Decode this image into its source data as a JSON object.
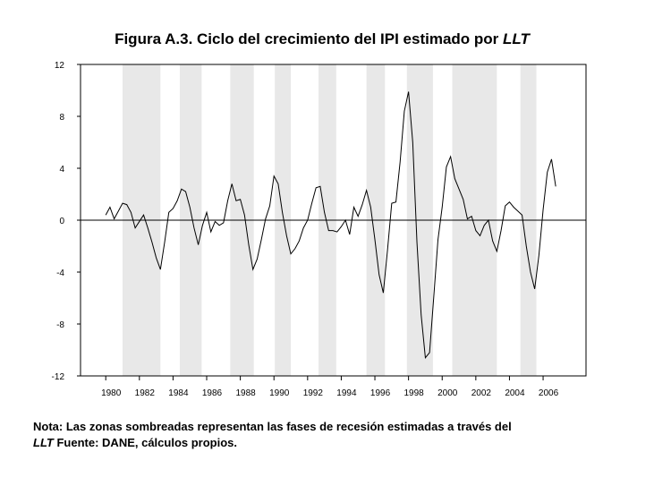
{
  "chart_data": {
    "type": "line",
    "title": "Figura A.3. Ciclo del crecimiento del IPI estimado por",
    "title_emphasis": "LLT",
    "note": [
      "Nota: Las zonas sombreadas representan las fases de recesión estimadas a través del",
      "LLT",
      "Fuente: DANE, cálculos propios."
    ],
    "xlim": [
      1978.5,
      2008.55
    ],
    "xticks": [
      1980,
      1982,
      1984,
      1986,
      1988,
      1990,
      1992,
      1994,
      1996,
      1998,
      2000,
      2002,
      2004,
      2006
    ],
    "ylim": [
      -12,
      12
    ],
    "yticks": [
      -12,
      -8,
      -4,
      0,
      4,
      8,
      12
    ],
    "recessions": [
      [
        1981.0,
        1983.25
      ],
      [
        1984.4,
        1985.7
      ],
      [
        1987.4,
        1988.8
      ],
      [
        1990.05,
        1991.0
      ],
      [
        1992.65,
        1993.7
      ],
      [
        1995.5,
        1996.6
      ],
      [
        1997.9,
        1999.45
      ],
      [
        2000.6,
        2003.25
      ],
      [
        2004.65,
        2005.6
      ]
    ],
    "recession_color": "#e8e8e8",
    "x": [
      1980,
      1980.25,
      1980.5,
      1980.75,
      1981,
      1981.25,
      1981.5,
      1981.75,
      1982,
      1982.25,
      1982.5,
      1982.75,
      1983,
      1983.25,
      1983.5,
      1983.75,
      1984,
      1984.25,
      1984.5,
      1984.75,
      1985,
      1985.25,
      1985.5,
      1985.75,
      1986,
      1986.25,
      1986.5,
      1986.75,
      1987,
      1987.25,
      1987.5,
      1987.75,
      1988,
      1988.25,
      1988.5,
      1988.75,
      1989,
      1989.25,
      1989.5,
      1989.75,
      1990,
      1990.25,
      1990.5,
      1990.75,
      1991,
      1991.25,
      1991.5,
      1991.75,
      1992,
      1992.25,
      1992.5,
      1992.75,
      1993,
      1993.25,
      1993.5,
      1993.75,
      1994,
      1994.25,
      1994.5,
      1994.75,
      1995,
      1995.25,
      1995.5,
      1995.75,
      1996,
      1996.25,
      1996.5,
      1996.75,
      1997,
      1997.25,
      1997.5,
      1997.75,
      1998,
      1998.25,
      1998.5,
      1998.75,
      1999,
      1999.25,
      1999.5,
      1999.75,
      2000,
      2000.25,
      2000.5,
      2000.75,
      2001,
      2001.25,
      2001.5,
      2001.75,
      2002,
      2002.25,
      2002.5,
      2002.75,
      2003,
      2003.25,
      2003.5,
      2003.75,
      2004,
      2004.25,
      2004.5,
      2004.75,
      2005,
      2005.25,
      2005.5,
      2005.75,
      2006,
      2006.25,
      2006.5,
      2006.75
    ],
    "series": [
      {
        "color": "#000000",
        "values": [
          0.4,
          1.0,
          0.1,
          0.7,
          1.3,
          1.2,
          0.6,
          -0.6,
          -0.1,
          0.4,
          -0.6,
          -1.7,
          -2.9,
          -3.8,
          -1.7,
          0.6,
          0.9,
          1.5,
          2.4,
          2.2,
          1.0,
          -0.6,
          -1.9,
          -0.4,
          0.6,
          -0.9,
          -0.1,
          -0.4,
          -0.2,
          1.5,
          2.8,
          1.5,
          1.6,
          0.4,
          -1.9,
          -3.8,
          -3.0,
          -1.5,
          0.1,
          1.1,
          3.4,
          2.8,
          0.6,
          -1.2,
          -2.6,
          -2.2,
          -1.6,
          -0.6,
          0.0,
          1.3,
          2.5,
          2.6,
          0.6,
          -0.8,
          -0.8,
          -0.9,
          -0.5,
          0.0,
          -1.1,
          1.0,
          0.3,
          1.2,
          2.3,
          1.0,
          -1.5,
          -4.2,
          -5.6,
          -2.3,
          1.3,
          1.4,
          4.5,
          8.4,
          9.9,
          6.0,
          -1.7,
          -7.3,
          -10.6,
          -10.2,
          -5.9,
          -1.5,
          1.0,
          4.1,
          4.9,
          3.2,
          2.4,
          1.6,
          0.1,
          0.3,
          -0.8,
          -1.2,
          -0.4,
          0.0,
          -1.6,
          -2.4,
          -0.8,
          1.1,
          1.4,
          1.0,
          0.7,
          0.4,
          -2.0,
          -4.0,
          -5.3,
          -2.7,
          0.8,
          3.7,
          4.7,
          2.6
        ]
      }
    ]
  }
}
